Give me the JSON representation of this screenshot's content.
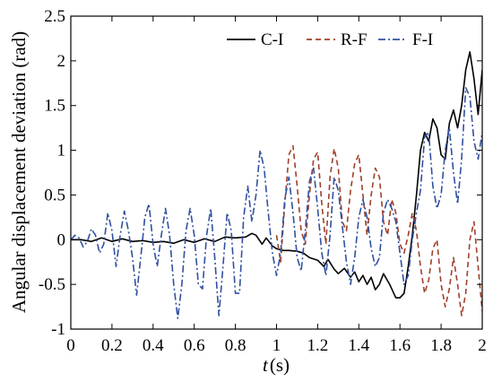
{
  "chart_data": {
    "type": "line",
    "xlabel": {
      "var": "t",
      "unit": "(s)"
    },
    "ylabel": "Angular displacement deviation (rad)",
    "xlim": [
      0,
      2
    ],
    "ylim": [
      -1,
      2.5
    ],
    "xticks": [
      "0",
      "0.2",
      "0.4",
      "0.6",
      "0.8",
      "1",
      "1.2",
      "1.4",
      "1.6",
      "1.8",
      "2"
    ],
    "yticks": [
      "-1",
      "-0.5",
      "0",
      "0.5",
      "1",
      "1.5",
      "2",
      "2.5"
    ],
    "grid": false,
    "legend_position": "top-right",
    "series": [
      {
        "name": "C-I",
        "color": "#000000",
        "style": "solid",
        "points": [
          [
            0,
            0
          ],
          [
            0.05,
            0
          ],
          [
            0.1,
            -0.02
          ],
          [
            0.15,
            0.02
          ],
          [
            0.2,
            -0.02
          ],
          [
            0.25,
            0.01
          ],
          [
            0.3,
            -0.02
          ],
          [
            0.35,
            -0.01
          ],
          [
            0.4,
            -0.03
          ],
          [
            0.45,
            -0.02
          ],
          [
            0.5,
            -0.04
          ],
          [
            0.55,
            0
          ],
          [
            0.6,
            -0.03
          ],
          [
            0.65,
            0.01
          ],
          [
            0.7,
            -0.02
          ],
          [
            0.75,
            0.03
          ],
          [
            0.8,
            0.02
          ],
          [
            0.85,
            0.03
          ],
          [
            0.88,
            0.07
          ],
          [
            0.9,
            0.05
          ],
          [
            0.93,
            -0.05
          ],
          [
            0.95,
            0.02
          ],
          [
            0.98,
            -0.07
          ],
          [
            1.0,
            -0.1
          ],
          [
            1.03,
            -0.12
          ],
          [
            1.06,
            -0.12
          ],
          [
            1.1,
            -0.13
          ],
          [
            1.13,
            -0.15
          ],
          [
            1.16,
            -0.2
          ],
          [
            1.2,
            -0.23
          ],
          [
            1.23,
            -0.3
          ],
          [
            1.25,
            -0.22
          ],
          [
            1.28,
            -0.33
          ],
          [
            1.3,
            -0.38
          ],
          [
            1.33,
            -0.32
          ],
          [
            1.36,
            -0.42
          ],
          [
            1.38,
            -0.36
          ],
          [
            1.4,
            -0.47
          ],
          [
            1.42,
            -0.4
          ],
          [
            1.44,
            -0.5
          ],
          [
            1.46,
            -0.42
          ],
          [
            1.48,
            -0.56
          ],
          [
            1.5,
            -0.5
          ],
          [
            1.52,
            -0.38
          ],
          [
            1.55,
            -0.5
          ],
          [
            1.58,
            -0.65
          ],
          [
            1.6,
            -0.65
          ],
          [
            1.62,
            -0.6
          ],
          [
            1.64,
            -0.3
          ],
          [
            1.66,
            0.05
          ],
          [
            1.68,
            0.5
          ],
          [
            1.7,
            1.0
          ],
          [
            1.72,
            1.2
          ],
          [
            1.74,
            1.1
          ],
          [
            1.76,
            1.35
          ],
          [
            1.78,
            1.25
          ],
          [
            1.8,
            0.95
          ],
          [
            1.82,
            0.9
          ],
          [
            1.84,
            1.3
          ],
          [
            1.86,
            1.45
          ],
          [
            1.88,
            1.25
          ],
          [
            1.9,
            1.5
          ],
          [
            1.92,
            1.9
          ],
          [
            1.94,
            2.1
          ],
          [
            1.96,
            1.8
          ],
          [
            1.98,
            1.4
          ],
          [
            2.0,
            1.9
          ]
        ]
      },
      {
        "name": "R-F",
        "color": "#a0402a",
        "style": "dashed",
        "points": [
          [
            1.0,
            0.05
          ],
          [
            1.02,
            -0.25
          ],
          [
            1.04,
            0.4
          ],
          [
            1.06,
            0.95
          ],
          [
            1.08,
            1.05
          ],
          [
            1.1,
            0.6
          ],
          [
            1.12,
            0.1
          ],
          [
            1.14,
            -0.05
          ],
          [
            1.16,
            0.5
          ],
          [
            1.18,
            0.9
          ],
          [
            1.2,
            0.98
          ],
          [
            1.22,
            0.4
          ],
          [
            1.24,
            -0.05
          ],
          [
            1.26,
            0.7
          ],
          [
            1.28,
            1.02
          ],
          [
            1.3,
            0.8
          ],
          [
            1.32,
            0.2
          ],
          [
            1.34,
            0.1
          ],
          [
            1.36,
            0.55
          ],
          [
            1.38,
            0.85
          ],
          [
            1.4,
            0.95
          ],
          [
            1.42,
            0.5
          ],
          [
            1.44,
            0.05
          ],
          [
            1.46,
            0.5
          ],
          [
            1.48,
            0.8
          ],
          [
            1.5,
            0.7
          ],
          [
            1.52,
            0.2
          ],
          [
            1.54,
            0.05
          ],
          [
            1.56,
            0.45
          ],
          [
            1.58,
            0.3
          ],
          [
            1.6,
            -0.05
          ],
          [
            1.62,
            -0.15
          ],
          [
            1.64,
            0.05
          ],
          [
            1.66,
            0.3
          ],
          [
            1.68,
            0.1
          ],
          [
            1.7,
            -0.3
          ],
          [
            1.72,
            -0.6
          ],
          [
            1.74,
            -0.45
          ],
          [
            1.76,
            -0.1
          ],
          [
            1.78,
            0.0
          ],
          [
            1.8,
            -0.5
          ],
          [
            1.82,
            -0.75
          ],
          [
            1.84,
            -0.55
          ],
          [
            1.86,
            -0.2
          ],
          [
            1.88,
            -0.5
          ],
          [
            1.9,
            -0.85
          ],
          [
            1.92,
            -0.6
          ],
          [
            1.94,
            0.0
          ],
          [
            1.96,
            0.2
          ],
          [
            1.98,
            -0.3
          ],
          [
            2.0,
            -0.8
          ]
        ]
      },
      {
        "name": "F-I",
        "color": "#3050a0",
        "style": "dashdot",
        "points": [
          [
            0,
            0
          ],
          [
            0.02,
            0.05
          ],
          [
            0.04,
            0.02
          ],
          [
            0.06,
            -0.08
          ],
          [
            0.08,
            -0.02
          ],
          [
            0.1,
            0.12
          ],
          [
            0.12,
            0.05
          ],
          [
            0.14,
            -0.15
          ],
          [
            0.16,
            -0.05
          ],
          [
            0.18,
            0.3
          ],
          [
            0.2,
            0.1
          ],
          [
            0.22,
            -0.3
          ],
          [
            0.24,
            0.05
          ],
          [
            0.26,
            0.32
          ],
          [
            0.28,
            0.1
          ],
          [
            0.3,
            -0.2
          ],
          [
            0.32,
            -0.62
          ],
          [
            0.34,
            -0.2
          ],
          [
            0.36,
            0.25
          ],
          [
            0.38,
            0.4
          ],
          [
            0.4,
            -0.05
          ],
          [
            0.42,
            -0.3
          ],
          [
            0.44,
            0.05
          ],
          [
            0.46,
            0.35
          ],
          [
            0.48,
            0.05
          ],
          [
            0.5,
            -0.5
          ],
          [
            0.52,
            -0.88
          ],
          [
            0.54,
            -0.5
          ],
          [
            0.56,
            0.1
          ],
          [
            0.58,
            0.35
          ],
          [
            0.6,
            0.05
          ],
          [
            0.62,
            -0.5
          ],
          [
            0.64,
            -0.55
          ],
          [
            0.66,
            0.05
          ],
          [
            0.68,
            0.35
          ],
          [
            0.7,
            -0.2
          ],
          [
            0.72,
            -0.85
          ],
          [
            0.74,
            -0.3
          ],
          [
            0.76,
            0.3
          ],
          [
            0.78,
            0.1
          ],
          [
            0.8,
            -0.6
          ],
          [
            0.82,
            -0.6
          ],
          [
            0.84,
            0.25
          ],
          [
            0.86,
            0.6
          ],
          [
            0.88,
            0.2
          ],
          [
            0.9,
            0.5
          ],
          [
            0.92,
            1.0
          ],
          [
            0.94,
            0.8
          ],
          [
            0.96,
            0.3
          ],
          [
            0.98,
            -0.15
          ],
          [
            1.0,
            -0.4
          ],
          [
            1.02,
            -0.15
          ],
          [
            1.04,
            0.45
          ],
          [
            1.06,
            0.7
          ],
          [
            1.08,
            0.3
          ],
          [
            1.1,
            -0.2
          ],
          [
            1.12,
            -0.35
          ],
          [
            1.14,
            0.1
          ],
          [
            1.16,
            0.65
          ],
          [
            1.18,
            0.8
          ],
          [
            1.2,
            0.35
          ],
          [
            1.22,
            -0.15
          ],
          [
            1.24,
            -0.4
          ],
          [
            1.26,
            0.05
          ],
          [
            1.28,
            0.7
          ],
          [
            1.3,
            0.55
          ],
          [
            1.32,
            0.15
          ],
          [
            1.34,
            -0.25
          ],
          [
            1.36,
            -0.5
          ],
          [
            1.38,
            -0.2
          ],
          [
            1.4,
            0.25
          ],
          [
            1.42,
            0.45
          ],
          [
            1.44,
            0.25
          ],
          [
            1.46,
            -0.1
          ],
          [
            1.48,
            -0.3
          ],
          [
            1.5,
            -0.2
          ],
          [
            1.52,
            0.3
          ],
          [
            1.54,
            0.45
          ],
          [
            1.56,
            0.35
          ],
          [
            1.58,
            0.2
          ],
          [
            1.6,
            -0.15
          ],
          [
            1.62,
            -0.5
          ],
          [
            1.64,
            -0.4
          ],
          [
            1.66,
            0.0
          ],
          [
            1.68,
            0.3
          ],
          [
            1.7,
            0.55
          ],
          [
            1.72,
            1.15
          ],
          [
            1.74,
            1.2
          ],
          [
            1.76,
            0.6
          ],
          [
            1.78,
            0.35
          ],
          [
            1.8,
            0.5
          ],
          [
            1.82,
            1.0
          ],
          [
            1.84,
            1.25
          ],
          [
            1.86,
            0.75
          ],
          [
            1.88,
            0.4
          ],
          [
            1.9,
            0.9
          ],
          [
            1.92,
            1.7
          ],
          [
            1.94,
            1.6
          ],
          [
            1.96,
            1.1
          ],
          [
            1.98,
            0.9
          ],
          [
            2.0,
            1.2
          ]
        ]
      }
    ]
  }
}
